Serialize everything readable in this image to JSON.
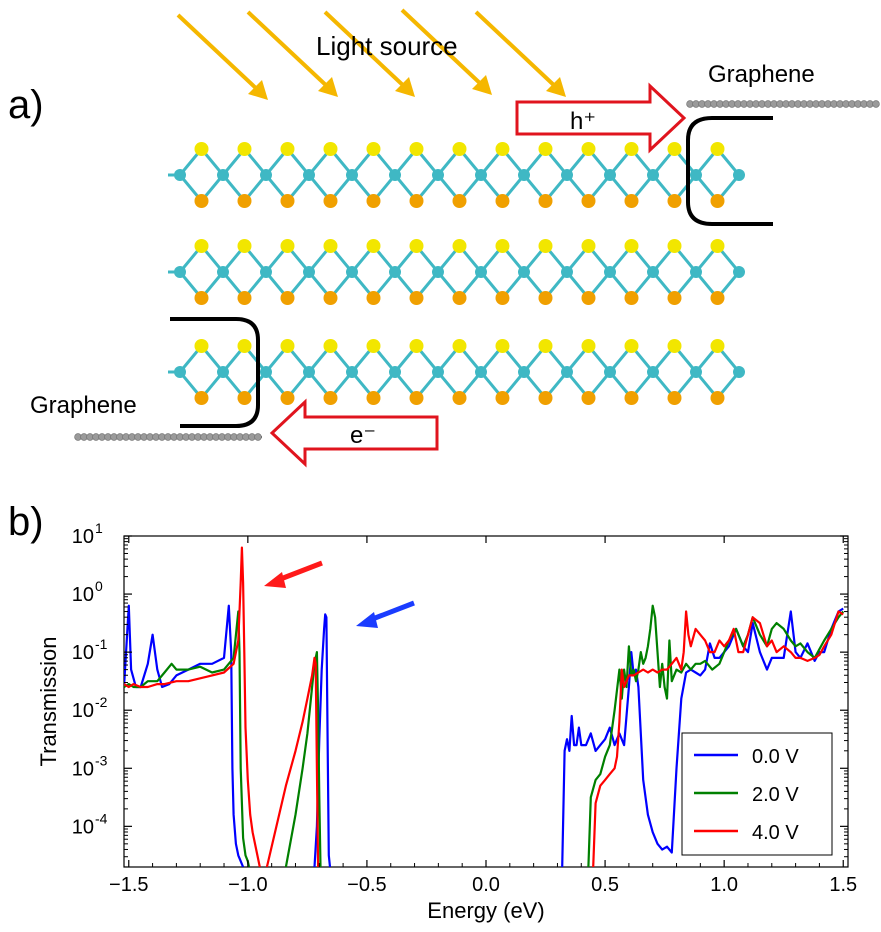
{
  "panel_a": {
    "label": "a)",
    "light_source": "Light source",
    "graphene_top": "Graphene",
    "graphene_bottom": "Graphene",
    "hole_label": "h⁺",
    "electron_label": "e⁻",
    "colors": {
      "light_arrow": "#f5b700",
      "charge_arrow": "#e0141e",
      "metal_atom": "#3fb8c4",
      "chalcogen_top": "#f2e600",
      "chalcogen_bottom": "#f0a000",
      "graphene": "#9a9a9a"
    }
  },
  "panel_b": {
    "label": "b)",
    "pointer_colors": {
      "red": "#ff1a1a",
      "blue": "#1a3cff"
    }
  },
  "chart_data": {
    "type": "line",
    "xlabel": "Energy (eV)",
    "ylabel": "Transmission",
    "xlim": [
      -1.52,
      1.52
    ],
    "ylim_log10": [
      -4.7,
      1.0
    ],
    "yscale": "log",
    "xticks": [
      -1.5,
      -1.0,
      -0.5,
      0.0,
      0.5,
      1.0,
      1.5
    ],
    "xtick_labels": [
      "−1.5",
      "−1.0",
      "−0.5",
      "0.0",
      "0.5",
      "1.0",
      "1.5"
    ],
    "yticks_log10": [
      1,
      0,
      -1,
      -2,
      -3,
      -4
    ],
    "ytick_labels": [
      "10",
      "10",
      "10",
      "10",
      "10",
      "10"
    ],
    "ytick_exponents": [
      "1",
      "0",
      "-1",
      "-2",
      "-3",
      "-4"
    ],
    "legend_position": "bottom-right",
    "series": [
      {
        "name": "0.0 V",
        "color": "#0000ff",
        "x": [
          -1.52,
          -1.5,
          -1.49,
          -1.47,
          -1.45,
          -1.42,
          -1.4,
          -1.38,
          -1.36,
          -1.33,
          -1.3,
          -1.25,
          -1.2,
          -1.15,
          -1.1,
          -1.08,
          -1.07,
          -1.065,
          -1.06,
          -1.05,
          -1.04,
          -1.03,
          -1.02,
          null,
          -0.72,
          -0.71,
          -0.7,
          -0.69,
          -0.68,
          -0.675,
          -0.67,
          -0.665,
          -0.66,
          -0.655,
          null,
          0.32,
          0.33,
          0.34,
          0.35,
          0.36,
          0.37,
          0.38,
          0.39,
          0.4,
          0.42,
          0.44,
          0.46,
          0.48,
          0.5,
          0.52,
          0.54,
          0.56,
          0.58,
          0.6,
          0.61,
          0.62,
          0.63,
          0.64,
          0.66,
          0.68,
          0.7,
          0.72,
          0.74,
          0.76,
          0.78,
          0.8,
          0.82,
          0.84,
          0.86,
          0.88,
          0.9,
          0.92,
          0.94,
          0.96,
          0.98,
          1.0,
          1.02,
          1.05,
          1.08,
          1.1,
          1.12,
          1.15,
          1.18,
          1.2,
          1.22,
          1.25,
          1.28,
          1.3,
          1.32,
          1.35,
          1.38,
          1.4,
          1.42,
          1.45,
          1.48,
          1.5
        ],
        "y_log10": [
          -1.6,
          -0.2,
          -1.3,
          -1.6,
          -1.6,
          -1.2,
          -0.7,
          -1.3,
          -1.6,
          -1.55,
          -1.4,
          -1.3,
          -1.2,
          -1.2,
          -1.1,
          -0.2,
          -1.0,
          -3.0,
          -3.8,
          -4.3,
          -4.5,
          -4.6,
          -4.7,
          null,
          -4.7,
          -4.0,
          -2.5,
          -1.3,
          -0.6,
          -0.35,
          -0.4,
          -2.5,
          -4.5,
          -4.7,
          null,
          -4.7,
          -2.7,
          -2.5,
          -2.7,
          -2.1,
          -2.6,
          -2.6,
          -2.3,
          -2.6,
          -2.6,
          -2.4,
          -2.7,
          -2.6,
          -2.5,
          -2.3,
          -2.6,
          -2.4,
          -2.6,
          -1.6,
          -1.0,
          -1.4,
          -1.3,
          -1.6,
          -3.2,
          -3.8,
          -4.1,
          -4.3,
          -4.4,
          -4.35,
          -4.45,
          -3.0,
          -1.8,
          -1.35,
          -1.3,
          -1.35,
          -1.4,
          -1.3,
          -0.85,
          -1.1,
          -1.1,
          -1.0,
          -0.9,
          -0.6,
          -0.9,
          -1.0,
          -0.5,
          -1.0,
          -1.3,
          -1.1,
          -1.1,
          -1.1,
          -0.3,
          -1.0,
          -1.1,
          -0.85,
          -1.15,
          -1.0,
          -1.0,
          -0.6,
          -0.3,
          -0.25
        ]
      },
      {
        "name": "2.0 V",
        "color": "#008000",
        "x": [
          -1.52,
          -1.5,
          -1.48,
          -1.45,
          -1.42,
          -1.38,
          -1.35,
          -1.32,
          -1.3,
          -1.28,
          -1.25,
          -1.2,
          -1.15,
          -1.1,
          -1.06,
          -1.04,
          -1.035,
          -1.03,
          -1.02,
          -1.01,
          -1.0,
          -0.995,
          null,
          -0.84,
          -0.8,
          -0.77,
          -0.75,
          -0.73,
          -0.72,
          -0.71,
          -0.705,
          -0.7,
          -0.695,
          null,
          0.43,
          0.44,
          0.46,
          0.48,
          0.5,
          0.52,
          0.54,
          0.56,
          0.57,
          0.58,
          0.59,
          0.6,
          0.61,
          0.62,
          0.63,
          0.64,
          0.65,
          0.66,
          0.67,
          0.68,
          0.69,
          0.7,
          0.71,
          0.72,
          0.73,
          0.74,
          0.75,
          0.76,
          0.77,
          0.78,
          0.8,
          0.82,
          0.84,
          0.86,
          0.88,
          0.9,
          0.92,
          0.95,
          0.98,
          1.0,
          1.02,
          1.05,
          1.08,
          1.1,
          1.12,
          1.15,
          1.18,
          1.2,
          1.22,
          1.25,
          1.28,
          1.3,
          1.32,
          1.35,
          1.38,
          1.4,
          1.42,
          1.45,
          1.48,
          1.5
        ],
        "y_log10": [
          -1.6,
          -1.55,
          -1.6,
          -1.6,
          -1.5,
          -1.5,
          -1.35,
          -1.2,
          -1.3,
          -1.3,
          -1.3,
          -1.25,
          -1.35,
          -1.3,
          -1.1,
          -0.3,
          -1.0,
          -3.0,
          -4.2,
          -4.5,
          -4.6,
          -4.7,
          null,
          -4.7,
          -3.8,
          -3.0,
          -2.4,
          -1.6,
          -1.2,
          -1.0,
          -2.0,
          -3.5,
          -4.7,
          null,
          -4.7,
          -3.5,
          -3.2,
          -3.1,
          -2.8,
          -2.6,
          -2.0,
          -1.3,
          -1.8,
          -1.3,
          -1.6,
          -0.9,
          -1.4,
          -1.3,
          -1.5,
          -1.3,
          -1.0,
          -1.2,
          -1.1,
          -0.9,
          -0.6,
          -0.2,
          -0.4,
          -1.0,
          -1.6,
          -1.2,
          -1.6,
          -1.8,
          -0.8,
          -1.5,
          -1.3,
          -1.35,
          -1.2,
          -1.3,
          -1.2,
          -1.2,
          -1.15,
          -1.3,
          -1.2,
          -1.0,
          -0.8,
          -0.6,
          -0.9,
          -0.7,
          -0.4,
          -0.7,
          -0.9,
          -0.6,
          -0.5,
          -0.6,
          -0.8,
          -0.9,
          -0.85,
          -1.0,
          -1.1,
          -0.95,
          -0.8,
          -0.6,
          -0.4,
          -0.3
        ]
      },
      {
        "name": "4.0 V",
        "color": "#ff0000",
        "x": [
          -1.52,
          -1.5,
          -1.48,
          -1.45,
          -1.42,
          -1.38,
          -1.35,
          -1.3,
          -1.25,
          -1.2,
          -1.15,
          -1.1,
          -1.06,
          -1.04,
          -1.03,
          -1.025,
          -1.02,
          -1.015,
          -1.01,
          -1.0,
          -0.99,
          -0.98,
          -0.96,
          -0.95,
          null,
          -0.92,
          -0.88,
          -0.84,
          -0.8,
          -0.77,
          -0.75,
          -0.73,
          -0.72,
          -0.715,
          -0.71,
          -0.705,
          null,
          0.45,
          0.46,
          0.48,
          0.5,
          0.52,
          0.54,
          0.55,
          0.56,
          0.57,
          0.58,
          0.59,
          0.6,
          0.62,
          0.64,
          0.66,
          0.68,
          0.7,
          0.72,
          0.74,
          0.76,
          0.78,
          0.8,
          0.82,
          0.83,
          0.84,
          0.85,
          0.86,
          0.88,
          0.9,
          0.92,
          0.94,
          0.96,
          0.98,
          1.0,
          1.02,
          1.04,
          1.06,
          1.08,
          1.1,
          1.12,
          1.15,
          1.18,
          1.2,
          1.22,
          1.25,
          1.28,
          1.3,
          1.32,
          1.35,
          1.38,
          1.4,
          1.42,
          1.45,
          1.48,
          1.5
        ],
        "y_log10": [
          -1.55,
          -1.6,
          -1.55,
          -1.6,
          -1.6,
          -1.55,
          -1.55,
          -1.5,
          -1.5,
          -1.45,
          -1.4,
          -1.35,
          -1.2,
          -0.8,
          0.2,
          0.8,
          0.2,
          -1.0,
          -2.3,
          -3.2,
          -3.8,
          -4.1,
          -4.5,
          -4.7,
          null,
          -4.7,
          -4.0,
          -3.3,
          -2.7,
          -2.2,
          -1.8,
          -1.4,
          -1.1,
          -1.2,
          -3.0,
          -4.7,
          null,
          -4.7,
          -3.6,
          -3.3,
          -3.2,
          -3.1,
          -3.0,
          -2.8,
          -2.2,
          -1.3,
          -1.6,
          -1.5,
          -1.4,
          -1.4,
          -1.35,
          -1.3,
          -1.35,
          -1.3,
          -1.35,
          -1.3,
          -1.3,
          -1.2,
          -1.1,
          -1.3,
          -1.0,
          -0.3,
          -0.7,
          -0.9,
          -0.6,
          -0.7,
          -0.8,
          -1.0,
          -1.0,
          -0.8,
          -0.9,
          -0.8,
          -0.6,
          -1.0,
          -1.0,
          -0.7,
          -0.4,
          -0.5,
          -0.9,
          -0.8,
          -1.0,
          -0.9,
          -1.0,
          -1.1,
          -1.1,
          -1.15,
          -1.1,
          -1.05,
          -0.9,
          -0.7,
          -0.3,
          -0.35
        ]
      }
    ]
  }
}
